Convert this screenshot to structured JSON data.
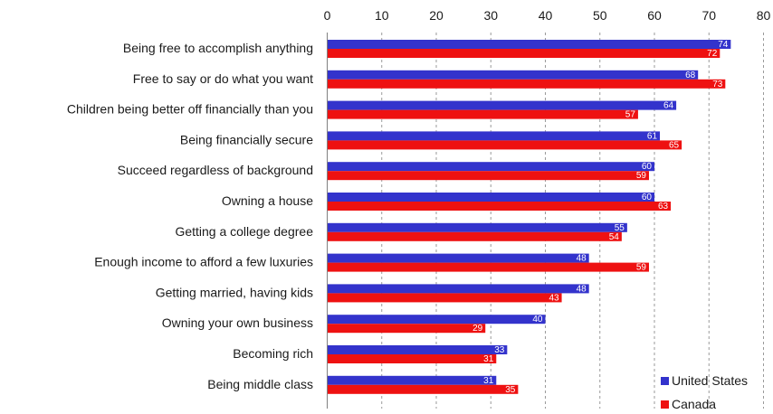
{
  "chart_data": {
    "type": "bar",
    "orientation": "horizontal",
    "categories": [
      "Being free to accomplish anything",
      "Free to say or do what you want",
      "Children being better off financially than you",
      "Being financially secure",
      "Succeed regardless of background",
      "Owning a house",
      "Getting a college degree",
      "Enough income to afford a few luxuries",
      "Getting married, having kids",
      "Owning your own business",
      "Becoming rich",
      "Being middle class"
    ],
    "series": [
      {
        "name": "United States",
        "color": "#3333cc",
        "values": [
          74,
          68,
          64,
          61,
          60,
          60,
          55,
          48,
          48,
          40,
          33,
          31
        ]
      },
      {
        "name": "Canada",
        "color": "#ee1111",
        "values": [
          72,
          73,
          57,
          65,
          59,
          63,
          54,
          59,
          43,
          29,
          31,
          35
        ]
      }
    ],
    "xlim": [
      0,
      80
    ],
    "xticks": [
      "0",
      "10",
      "20",
      "30",
      "40",
      "50",
      "60",
      "70",
      "80"
    ],
    "x_axis_position": "top",
    "grid": true,
    "legend_position": "bottom-right"
  }
}
